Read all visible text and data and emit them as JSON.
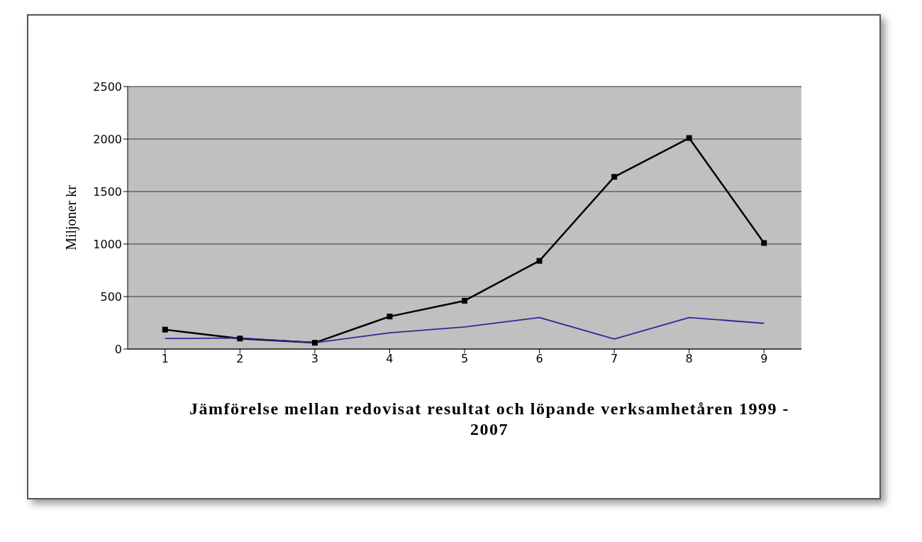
{
  "chart_data": {
    "type": "line",
    "xlabel": "Jämförelse mellan redovisat resultat och löpande verksamhetåren 1999 - 2007",
    "ylabel": "Miljoner kr",
    "categories": [
      "1",
      "2",
      "3",
      "4",
      "5",
      "6",
      "7",
      "8",
      "9"
    ],
    "series": [
      {
        "color": "#000000",
        "marker": "square",
        "values": [
          185,
          100,
          60,
          310,
          460,
          840,
          1640,
          2010,
          1010
        ]
      },
      {
        "color": "#2b2b9a",
        "marker": "none",
        "values": [
          100,
          105,
          60,
          155,
          210,
          300,
          95,
          300,
          245
        ]
      }
    ],
    "ylim": [
      0,
      2500
    ],
    "yticks": [
      0,
      500,
      1000,
      1500,
      2000,
      2500
    ],
    "grid": "y",
    "legend": false
  }
}
